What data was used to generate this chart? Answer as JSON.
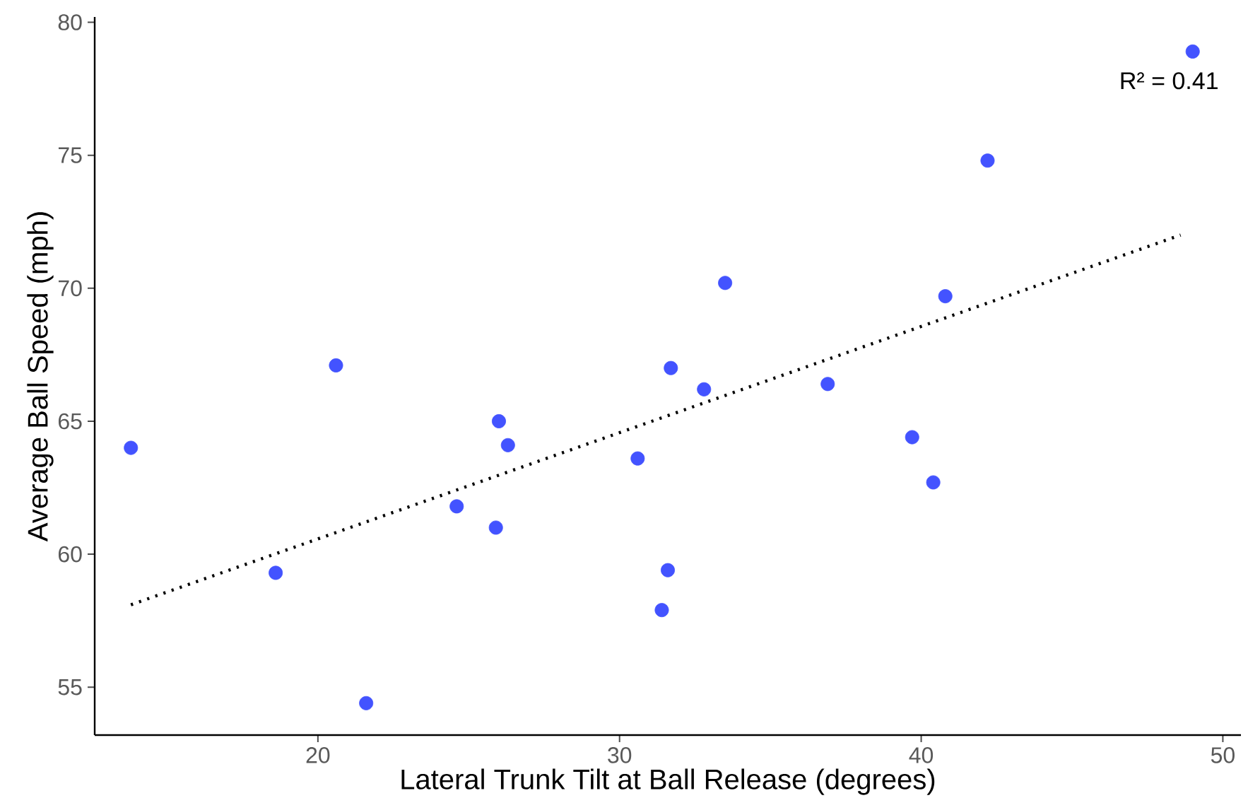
{
  "chart_data": {
    "type": "scatter",
    "xlabel": "Lateral Trunk Tilt at Ball Release (degrees)",
    "ylabel": "Average Ball Speed (mph)",
    "xlim": [
      12.6,
      50.6
    ],
    "ylim": [
      53.2,
      80.2
    ],
    "xticks": [
      20,
      30,
      40,
      50
    ],
    "yticks": [
      55,
      60,
      65,
      70,
      75,
      80
    ],
    "grid": false,
    "legend": false,
    "annotations": [
      "R² = 0.41"
    ],
    "series": [
      {
        "color": "#4353ff",
        "marker": "circle",
        "x": [
          13.8,
          18.6,
          20.6,
          21.6,
          24.6,
          25.9,
          26.0,
          26.3,
          30.6,
          31.4,
          31.6,
          31.7,
          32.8,
          33.5,
          36.9,
          39.7,
          40.4,
          40.8,
          42.2,
          49.0
        ],
        "values": [
          64.0,
          59.3,
          67.1,
          54.4,
          61.8,
          61.0,
          65.0,
          64.1,
          63.6,
          57.9,
          59.4,
          67.0,
          66.2,
          70.2,
          66.4,
          64.4,
          62.7,
          69.7,
          74.8,
          78.9
        ]
      },
      {
        "type": "line",
        "color": "#000000",
        "marker": "none",
        "line_style": "dotted",
        "x": [
          13.8,
          48.6
        ],
        "values": [
          58.1,
          72.0
        ]
      }
    ]
  }
}
